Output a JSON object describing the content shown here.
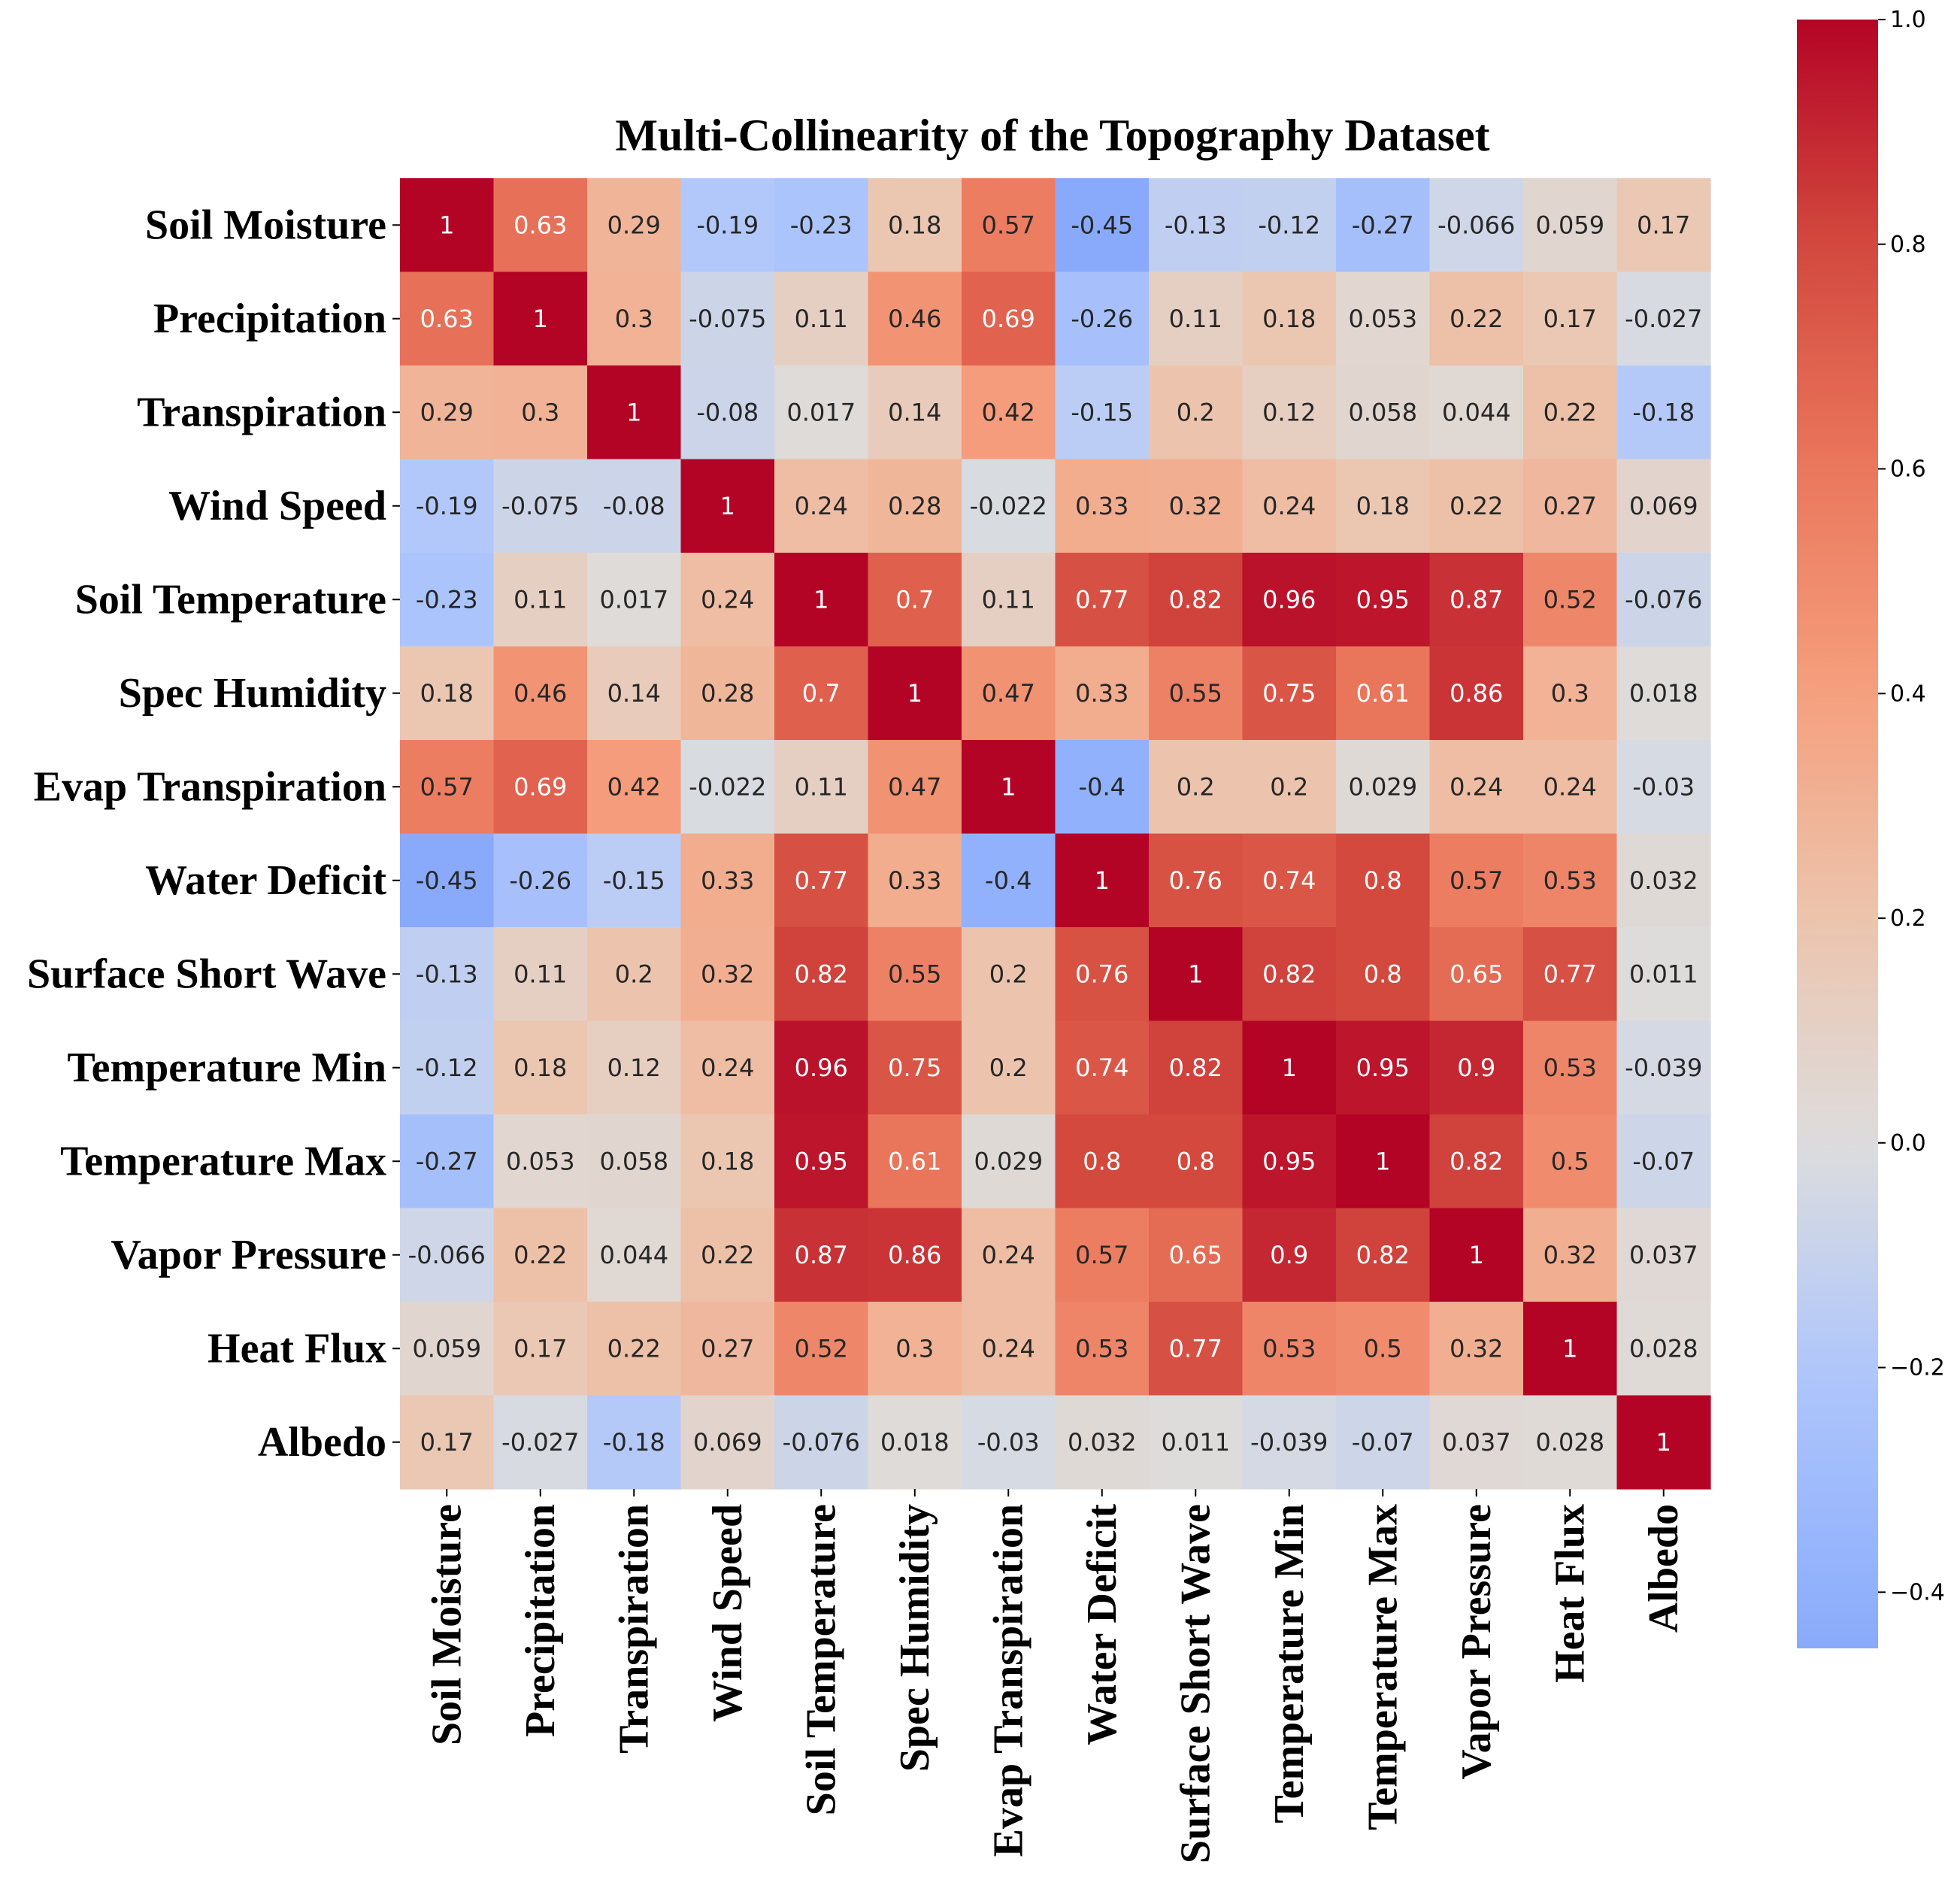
{
  "chart_data": {
    "type": "heatmap",
    "title": "Multi-Collinearity of the Topography Dataset",
    "variables": [
      "Soil Moisture",
      "Precipitation",
      "Transpiration",
      "Wind Speed",
      "Soil Temperature",
      "Spec Humidity",
      "Evap Transpiration",
      "Water Deficit",
      "Surface Short Wave",
      "Temperature Min",
      "Temperature Max",
      "Vapor Pressure",
      "Heat Flux",
      "Albedo"
    ],
    "matrix": [
      [
        "1",
        "0.63",
        "0.29",
        "-0.19",
        "-0.23",
        "0.18",
        "0.57",
        "-0.45",
        "-0.13",
        "-0.12",
        "-0.27",
        "-0.066",
        "0.059",
        "0.17"
      ],
      [
        "0.63",
        "1",
        "0.3",
        "-0.075",
        "0.11",
        "0.46",
        "0.69",
        "-0.26",
        "0.11",
        "0.18",
        "0.053",
        "0.22",
        "0.17",
        "-0.027"
      ],
      [
        "0.29",
        "0.3",
        "1",
        "-0.08",
        "0.017",
        "0.14",
        "0.42",
        "-0.15",
        "0.2",
        "0.12",
        "0.058",
        "0.044",
        "0.22",
        "-0.18"
      ],
      [
        "-0.19",
        "-0.075",
        "-0.08",
        "1",
        "0.24",
        "0.28",
        "-0.022",
        "0.33",
        "0.32",
        "0.24",
        "0.18",
        "0.22",
        "0.27",
        "0.069"
      ],
      [
        "-0.23",
        "0.11",
        "0.017",
        "0.24",
        "1",
        "0.7",
        "0.11",
        "0.77",
        "0.82",
        "0.96",
        "0.95",
        "0.87",
        "0.52",
        "-0.076"
      ],
      [
        "0.18",
        "0.46",
        "0.14",
        "0.28",
        "0.7",
        "1",
        "0.47",
        "0.33",
        "0.55",
        "0.75",
        "0.61",
        "0.86",
        "0.3",
        "0.018"
      ],
      [
        "0.57",
        "0.69",
        "0.42",
        "-0.022",
        "0.11",
        "0.47",
        "1",
        "-0.4",
        "0.2",
        "0.2",
        "0.029",
        "0.24",
        "0.24",
        "-0.03"
      ],
      [
        "-0.45",
        "-0.26",
        "-0.15",
        "0.33",
        "0.77",
        "0.33",
        "-0.4",
        "1",
        "0.76",
        "0.74",
        "0.8",
        "0.57",
        "0.53",
        "0.032"
      ],
      [
        "-0.13",
        "0.11",
        "0.2",
        "0.32",
        "0.82",
        "0.55",
        "0.2",
        "0.76",
        "1",
        "0.82",
        "0.8",
        "0.65",
        "0.77",
        "0.011"
      ],
      [
        "-0.12",
        "0.18",
        "0.12",
        "0.24",
        "0.96",
        "0.75",
        "0.2",
        "0.74",
        "0.82",
        "1",
        "0.95",
        "0.9",
        "0.53",
        "-0.039"
      ],
      [
        "-0.27",
        "0.053",
        "0.058",
        "0.18",
        "0.95",
        "0.61",
        "0.029",
        "0.8",
        "0.8",
        "0.95",
        "1",
        "0.82",
        "0.5",
        "-0.07"
      ],
      [
        "-0.066",
        "0.22",
        "0.044",
        "0.22",
        "0.87",
        "0.86",
        "0.24",
        "0.57",
        "0.65",
        "0.9",
        "0.82",
        "1",
        "0.32",
        "0.037"
      ],
      [
        "0.059",
        "0.17",
        "0.22",
        "0.27",
        "0.52",
        "0.3",
        "0.24",
        "0.53",
        "0.77",
        "0.53",
        "0.5",
        "0.32",
        "1",
        "0.028"
      ],
      [
        "0.17",
        "-0.027",
        "-0.18",
        "0.069",
        "-0.076",
        "0.018",
        "-0.03",
        "0.032",
        "0.011",
        "-0.039",
        "-0.07",
        "0.037",
        "0.028",
        "1"
      ]
    ],
    "colormap": "coolwarm",
    "colors": {
      "low": "#8db0fe",
      "mid": "#dcdddd",
      "high": "#b40426"
    },
    "vmin": -0.45,
    "vmax": 1.0,
    "colorbar": {
      "ticks": [
        "1.0",
        "0.8",
        "0.6",
        "0.4",
        "0.2",
        "0.0",
        "−0.2",
        "−0.4"
      ],
      "tick_values": [
        1.0,
        0.8,
        0.6,
        0.4,
        0.2,
        0.0,
        -0.2,
        -0.4
      ],
      "placement": "right"
    }
  }
}
